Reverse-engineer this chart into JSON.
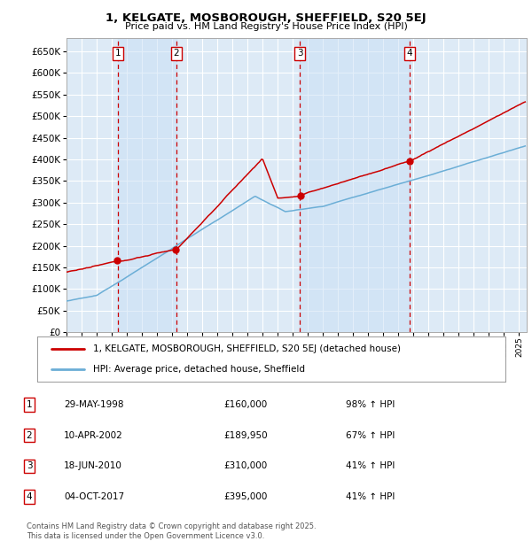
{
  "title": "1, KELGATE, MOSBOROUGH, SHEFFIELD, S20 5EJ",
  "subtitle": "Price paid vs. HM Land Registry's House Price Index (HPI)",
  "ylim": [
    0,
    680000
  ],
  "yticks": [
    0,
    50000,
    100000,
    150000,
    200000,
    250000,
    300000,
    350000,
    400000,
    450000,
    500000,
    550000,
    600000,
    650000
  ],
  "xlim_start": 1995.0,
  "xlim_end": 2025.5,
  "background_color": "#ffffff",
  "plot_bg_color": "#ddeaf6",
  "grid_color": "#c8d8e8",
  "legend_line1_label": "1, KELGATE, MOSBOROUGH, SHEFFIELD, S20 5EJ (detached house)",
  "legend_line2_label": "HPI: Average price, detached house, Sheffield",
  "purchases": [
    {
      "num": 1,
      "date": "29-MAY-1998",
      "price": 160000,
      "pct": "98%",
      "arrow": "↑",
      "x_year": 1998.4
    },
    {
      "num": 2,
      "date": "10-APR-2002",
      "price": 189950,
      "pct": "67%",
      "arrow": "↑",
      "x_year": 2002.27
    },
    {
      "num": 3,
      "date": "18-JUN-2010",
      "price": 310000,
      "pct": "41%",
      "arrow": "↑",
      "x_year": 2010.46
    },
    {
      "num": 4,
      "date": "04-OCT-2017",
      "price": 395000,
      "pct": "41%",
      "arrow": "↑",
      "x_year": 2017.75
    }
  ],
  "footer_line1": "Contains HM Land Registry data © Crown copyright and database right 2025.",
  "footer_line2": "This data is licensed under the Open Government Licence v3.0.",
  "hpi_color": "#6baed6",
  "price_color": "#cc0000",
  "shade_color": "#ddeaf6",
  "dashed_color": "#cc0000"
}
